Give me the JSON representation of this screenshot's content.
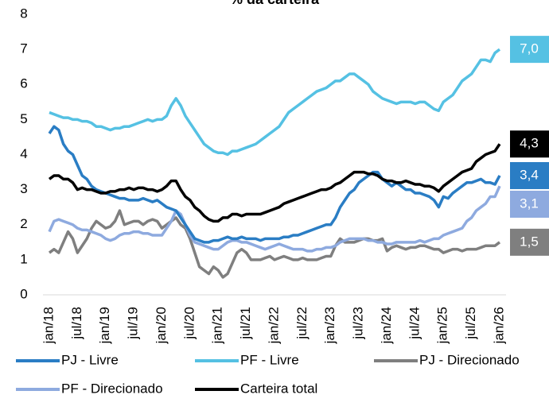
{
  "chart_data": {
    "type": "line",
    "title": "% da carteira",
    "categories": [
      "jan/18",
      null,
      null,
      null,
      null,
      null,
      "jul/18",
      null,
      null,
      null,
      null,
      null,
      "jan/19",
      null,
      null,
      null,
      null,
      null,
      "jul/19",
      null,
      null,
      null,
      null,
      null,
      "jan/20",
      null,
      null,
      null,
      null,
      null,
      "jul/20",
      null,
      null,
      null,
      null,
      null,
      "jan/21",
      null,
      null,
      null,
      null,
      null,
      "jul/21",
      null,
      null,
      null,
      null,
      null,
      "jan/22",
      null,
      null,
      null,
      null,
      null,
      "jul/22",
      null,
      null,
      null,
      null,
      null,
      "jan/23",
      null,
      null,
      null,
      null,
      null,
      "jul/23",
      null,
      null,
      null,
      null,
      null,
      "jan/24",
      null,
      null,
      null,
      null,
      null,
      "jul/24",
      null,
      null,
      null,
      null,
      null,
      "jan/25",
      null,
      null,
      null,
      null,
      null,
      "jul/25",
      null,
      null,
      null,
      null,
      null,
      "jan/26"
    ],
    "ylim": [
      0,
      8
    ],
    "yticks": [
      0,
      1,
      2,
      3,
      4,
      5,
      6,
      7,
      8
    ],
    "grid": false,
    "legend": "bottom",
    "series": [
      {
        "name": "PJ - Livre",
        "color": "#2a7dc4",
        "values": [
          4.6,
          4.8,
          4.7,
          4.3,
          4.1,
          4.0,
          3.7,
          3.4,
          3.3,
          3.1,
          3.0,
          2.95,
          2.9,
          2.85,
          2.8,
          2.75,
          2.75,
          2.7,
          2.7,
          2.7,
          2.75,
          2.7,
          2.65,
          2.7,
          2.6,
          2.5,
          2.45,
          2.4,
          2.2,
          2.0,
          1.8,
          1.6,
          1.55,
          1.5,
          1.5,
          1.55,
          1.55,
          1.6,
          1.65,
          1.6,
          1.6,
          1.65,
          1.6,
          1.6,
          1.6,
          1.55,
          1.6,
          1.6,
          1.6,
          1.6,
          1.65,
          1.65,
          1.7,
          1.7,
          1.75,
          1.8,
          1.85,
          1.9,
          1.95,
          2.0,
          2.0,
          2.2,
          2.5,
          2.7,
          2.9,
          3.0,
          3.2,
          3.3,
          3.4,
          3.5,
          3.5,
          3.3,
          3.2,
          3.1,
          3.2,
          3.1,
          3.0,
          3.0,
          2.9,
          2.9,
          2.85,
          2.8,
          2.7,
          2.5,
          2.8,
          2.75,
          2.9,
          3.0,
          3.1,
          3.2,
          3.2,
          3.25,
          3.3,
          3.2,
          3.2,
          3.15,
          3.4
        ],
        "value_labels": [
          null,
          null,
          null,
          null,
          null,
          null,
          null,
          null,
          null,
          null,
          null,
          null,
          null,
          null,
          null,
          null,
          null,
          null,
          null,
          null,
          null,
          null,
          null,
          null,
          null,
          null,
          null,
          null,
          null,
          null,
          null,
          null,
          null,
          null,
          null,
          null,
          null,
          null,
          null,
          null,
          null,
          null,
          null,
          null,
          null,
          null,
          null,
          null,
          null,
          null,
          null,
          null,
          null,
          null,
          null,
          null,
          null,
          null,
          null,
          null,
          null,
          null,
          null,
          null,
          null,
          null,
          null,
          null,
          null,
          null,
          null,
          null,
          null,
          null,
          null,
          null,
          null,
          null,
          null,
          null,
          null,
          null,
          null,
          null,
          null,
          null,
          null,
          null,
          null,
          null,
          null,
          null,
          null,
          null,
          null,
          null,
          "3,4"
        ]
      },
      {
        "name": "PF - Livre",
        "color": "#55c1e3",
        "values": [
          5.2,
          5.15,
          5.1,
          5.05,
          5.05,
          5.0,
          5.0,
          4.95,
          4.95,
          4.9,
          4.8,
          4.8,
          4.75,
          4.7,
          4.75,
          4.75,
          4.8,
          4.8,
          4.85,
          4.9,
          4.95,
          5.0,
          4.95,
          5.0,
          5.0,
          5.1,
          5.4,
          5.6,
          5.4,
          5.1,
          4.9,
          4.7,
          4.5,
          4.3,
          4.2,
          4.1,
          4.05,
          4.05,
          4.0,
          4.1,
          4.1,
          4.15,
          4.2,
          4.25,
          4.3,
          4.4,
          4.5,
          4.6,
          4.7,
          4.8,
          5.0,
          5.2,
          5.3,
          5.4,
          5.5,
          5.6,
          5.7,
          5.8,
          5.85,
          5.9,
          6.0,
          6.1,
          6.1,
          6.2,
          6.3,
          6.3,
          6.2,
          6.1,
          6.0,
          5.8,
          5.7,
          5.6,
          5.55,
          5.5,
          5.45,
          5.5,
          5.5,
          5.5,
          5.45,
          5.5,
          5.5,
          5.4,
          5.3,
          5.25,
          5.5,
          5.6,
          5.7,
          5.9,
          6.1,
          6.2,
          6.3,
          6.5,
          6.7,
          6.7,
          6.65,
          6.9,
          7.0
        ],
        "value_labels": [
          null,
          null,
          null,
          null,
          null,
          null,
          null,
          null,
          null,
          null,
          null,
          null,
          null,
          null,
          null,
          null,
          null,
          null,
          null,
          null,
          null,
          null,
          null,
          null,
          null,
          null,
          null,
          null,
          null,
          null,
          null,
          null,
          null,
          null,
          null,
          null,
          null,
          null,
          null,
          null,
          null,
          null,
          null,
          null,
          null,
          null,
          null,
          null,
          null,
          null,
          null,
          null,
          null,
          null,
          null,
          null,
          null,
          null,
          null,
          null,
          null,
          null,
          null,
          null,
          null,
          null,
          null,
          null,
          null,
          null,
          null,
          null,
          null,
          null,
          null,
          null,
          null,
          null,
          null,
          null,
          null,
          null,
          null,
          null,
          null,
          null,
          null,
          null,
          null,
          null,
          null,
          null,
          null,
          null,
          null,
          null,
          "7,0"
        ]
      },
      {
        "name": "PJ - Direcionado",
        "color": "#7f7f7f",
        "values": [
          1.2,
          1.3,
          1.2,
          1.5,
          1.8,
          1.6,
          1.2,
          1.4,
          1.6,
          1.9,
          2.1,
          2.0,
          1.9,
          1.95,
          2.1,
          2.4,
          2.0,
          2.05,
          2.1,
          2.1,
          2.0,
          2.1,
          2.15,
          2.1,
          1.9,
          2.0,
          2.1,
          2.2,
          2.0,
          1.9,
          1.6,
          1.2,
          0.8,
          0.7,
          0.6,
          0.8,
          0.7,
          0.5,
          0.6,
          0.9,
          1.2,
          1.3,
          1.2,
          1.0,
          1.0,
          1.0,
          1.05,
          1.1,
          1.0,
          1.05,
          1.1,
          1.05,
          1.0,
          1.0,
          1.05,
          1.0,
          1.0,
          1.0,
          1.05,
          1.1,
          1.1,
          1.4,
          1.6,
          1.5,
          1.5,
          1.5,
          1.55,
          1.6,
          1.6,
          1.55,
          1.55,
          1.6,
          1.25,
          1.35,
          1.4,
          1.35,
          1.3,
          1.35,
          1.35,
          1.4,
          1.4,
          1.35,
          1.3,
          1.3,
          1.2,
          1.25,
          1.3,
          1.3,
          1.25,
          1.3,
          1.3,
          1.3,
          1.35,
          1.4,
          1.4,
          1.4,
          1.5
        ],
        "value_labels": [
          null,
          null,
          null,
          null,
          null,
          null,
          null,
          null,
          null,
          null,
          null,
          null,
          null,
          null,
          null,
          null,
          null,
          null,
          null,
          null,
          null,
          null,
          null,
          null,
          null,
          null,
          null,
          null,
          null,
          null,
          null,
          null,
          null,
          null,
          null,
          null,
          null,
          null,
          null,
          null,
          null,
          null,
          null,
          null,
          null,
          null,
          null,
          null,
          null,
          null,
          null,
          null,
          null,
          null,
          null,
          null,
          null,
          null,
          null,
          null,
          null,
          null,
          null,
          null,
          null,
          null,
          null,
          null,
          null,
          null,
          null,
          null,
          null,
          null,
          null,
          null,
          null,
          null,
          null,
          null,
          null,
          null,
          null,
          null,
          null,
          null,
          null,
          null,
          null,
          null,
          null,
          null,
          null,
          null,
          null,
          null,
          "1,5"
        ]
      },
      {
        "name": "PF - Direcionado",
        "color": "#8eaadf",
        "values": [
          1.8,
          2.1,
          2.15,
          2.1,
          2.05,
          2.0,
          1.9,
          1.85,
          1.85,
          1.8,
          1.75,
          1.7,
          1.6,
          1.55,
          1.6,
          1.7,
          1.75,
          1.75,
          1.8,
          1.8,
          1.75,
          1.75,
          1.7,
          1.7,
          1.7,
          1.9,
          2.1,
          2.4,
          2.3,
          2.0,
          1.7,
          1.5,
          1.45,
          1.4,
          1.35,
          1.3,
          1.3,
          1.4,
          1.5,
          1.55,
          1.55,
          1.5,
          1.5,
          1.45,
          1.4,
          1.35,
          1.3,
          1.35,
          1.4,
          1.45,
          1.4,
          1.35,
          1.3,
          1.3,
          1.3,
          1.25,
          1.25,
          1.3,
          1.3,
          1.35,
          1.35,
          1.4,
          1.5,
          1.55,
          1.6,
          1.6,
          1.6,
          1.6,
          1.55,
          1.55,
          1.5,
          1.5,
          1.45,
          1.45,
          1.5,
          1.5,
          1.5,
          1.5,
          1.5,
          1.55,
          1.5,
          1.55,
          1.6,
          1.6,
          1.7,
          1.75,
          1.8,
          1.85,
          1.9,
          2.1,
          2.2,
          2.4,
          2.5,
          2.6,
          2.8,
          2.8,
          3.1
        ],
        "value_labels": [
          null,
          null,
          null,
          null,
          null,
          null,
          null,
          null,
          null,
          null,
          null,
          null,
          null,
          null,
          null,
          null,
          null,
          null,
          null,
          null,
          null,
          null,
          null,
          null,
          null,
          null,
          null,
          null,
          null,
          null,
          null,
          null,
          null,
          null,
          null,
          null,
          null,
          null,
          null,
          null,
          null,
          null,
          null,
          null,
          null,
          null,
          null,
          null,
          null,
          null,
          null,
          null,
          null,
          null,
          null,
          null,
          null,
          null,
          null,
          null,
          null,
          null,
          null,
          null,
          null,
          null,
          null,
          null,
          null,
          null,
          null,
          null,
          null,
          null,
          null,
          null,
          null,
          null,
          null,
          null,
          null,
          null,
          null,
          null,
          null,
          null,
          null,
          null,
          null,
          null,
          null,
          null,
          null,
          null,
          null,
          null,
          "3,1"
        ]
      },
      {
        "name": "Carteira total",
        "color": "#000000",
        "values": [
          3.3,
          3.4,
          3.4,
          3.3,
          3.3,
          3.2,
          3.0,
          3.05,
          3.0,
          3.0,
          2.95,
          2.9,
          2.9,
          2.95,
          2.95,
          3.0,
          3.0,
          3.05,
          3.0,
          3.05,
          3.05,
          3.0,
          3.0,
          2.95,
          3.0,
          3.1,
          3.25,
          3.25,
          3.0,
          2.8,
          2.7,
          2.5,
          2.4,
          2.25,
          2.15,
          2.1,
          2.1,
          2.2,
          2.2,
          2.3,
          2.3,
          2.25,
          2.3,
          2.3,
          2.3,
          2.3,
          2.35,
          2.4,
          2.45,
          2.5,
          2.6,
          2.65,
          2.7,
          2.75,
          2.8,
          2.85,
          2.9,
          2.95,
          3.0,
          3.0,
          3.05,
          3.15,
          3.2,
          3.3,
          3.4,
          3.5,
          3.5,
          3.5,
          3.45,
          3.45,
          3.4,
          3.3,
          3.25,
          3.25,
          3.2,
          3.2,
          3.25,
          3.2,
          3.15,
          3.15,
          3.1,
          3.1,
          3.05,
          2.95,
          3.1,
          3.2,
          3.3,
          3.4,
          3.5,
          3.55,
          3.6,
          3.8,
          3.9,
          4.0,
          4.05,
          4.1,
          4.3
        ],
        "value_labels": [
          null,
          null,
          null,
          null,
          null,
          null,
          null,
          null,
          null,
          null,
          null,
          null,
          null,
          null,
          null,
          null,
          null,
          null,
          null,
          null,
          null,
          null,
          null,
          null,
          null,
          null,
          null,
          null,
          null,
          null,
          null,
          null,
          null,
          null,
          null,
          null,
          null,
          null,
          null,
          null,
          null,
          null,
          null,
          null,
          null,
          null,
          null,
          null,
          null,
          null,
          null,
          null,
          null,
          null,
          null,
          null,
          null,
          null,
          null,
          null,
          null,
          null,
          null,
          null,
          null,
          null,
          null,
          null,
          null,
          null,
          null,
          null,
          null,
          null,
          null,
          null,
          null,
          null,
          null,
          null,
          null,
          null,
          null,
          null,
          null,
          null,
          null,
          null,
          null,
          null,
          null,
          null,
          null,
          null,
          null,
          null,
          "4,3"
        ]
      }
    ]
  }
}
